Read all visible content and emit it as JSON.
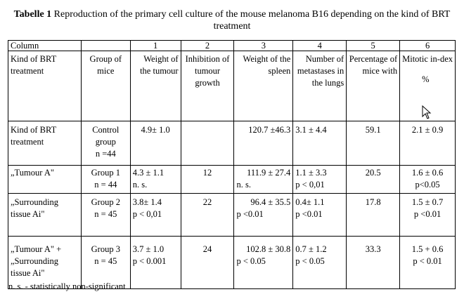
{
  "caption": {
    "label": "Tabelle 1",
    "text": "Reproduction of the primary cell culture of the mouse melanoma B16 depending on the kind of BRT treatment"
  },
  "table": {
    "colnums": [
      "Column",
      "",
      "1",
      "2",
      "3",
      "4",
      "5",
      "6"
    ],
    "headers": [
      "Kind of BRT treatment",
      "Group of mice",
      "Weight of the tumour",
      "Inhibition of tumour growth",
      "Weight of the spleen",
      "Number of metastases in the lungs",
      "Percentage of mice with",
      "Mitotic in-dex"
    ],
    "header_extra": "%",
    "rows": [
      {
        "kind": "Kind of BRT treatment",
        "group": [
          "Control",
          "group",
          "n =44"
        ],
        "tumour": [
          "4.9± 1.0"
        ],
        "inhibition": "",
        "spleen": [
          "120.7 ±46.3"
        ],
        "metastases": [
          "3.1 ± 4.4"
        ],
        "percentage": "59.1",
        "mitotic": [
          "2.1 ± 0.9"
        ]
      },
      {
        "kind": "„Tumour A\"",
        "group": [
          "Group 1",
          "n = 44"
        ],
        "tumour": [
          "4.3 ± 1.1",
          "n. s."
        ],
        "inhibition": "12",
        "spleen": [
          "111.9 ± 27.4",
          "n. s."
        ],
        "metastases": [
          "1.1 ± 3.3",
          "p < 0,01"
        ],
        "percentage": "20.5",
        "mitotic": [
          "1.6 ± 0.6",
          "p<0.05"
        ]
      },
      {
        "kind": "„Surrounding tissue Ai\"",
        "group": [
          "Group 2",
          "n = 45"
        ],
        "tumour": [
          "3.8± 1.4",
          "p < 0,01"
        ],
        "inhibition": "22",
        "spleen": [
          "96.4 ± 35.5",
          "p <0.01"
        ],
        "metastases": [
          "0.4± 1.1",
          "p <0.01"
        ],
        "percentage": "17.8",
        "mitotic": [
          "1.5 ± 0.7",
          "p <0.01"
        ]
      },
      {
        "kind": "„Tumour A\" + „Surrounding tissue Ai\"",
        "group": [
          "Group 3",
          "n = 45"
        ],
        "tumour": [
          "3.7 ± 1.0",
          "p < 0.001"
        ],
        "inhibition": "24",
        "spleen": [
          "102.8 ± 30.8",
          "p < 0.05"
        ],
        "metastases": [
          "0.7 ± 1.2",
          "p < 0.05"
        ],
        "percentage": "33.3",
        "mitotic": [
          "1.5 + 0.6",
          "p < 0.01"
        ]
      }
    ]
  },
  "footnote": "n. s. - statistically non-significant",
  "icons": {
    "cursor": "mouse-pointer-icon"
  }
}
